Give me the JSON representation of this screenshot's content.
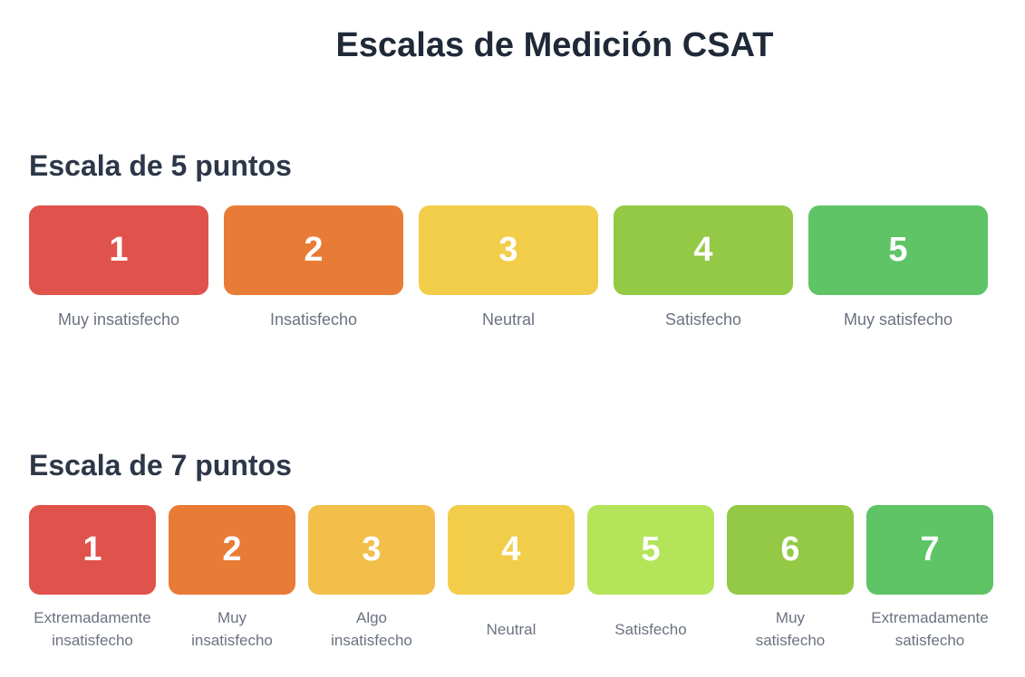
{
  "page": {
    "title": "Escalas de Medición CSAT"
  },
  "scale5": {
    "title": "Escala de 5 puntos",
    "items": [
      {
        "value": "1",
        "label": "Muy insatisfecho",
        "color": "#e0524c"
      },
      {
        "value": "2",
        "label": "Insatisfecho",
        "color": "#e87b35"
      },
      {
        "value": "3",
        "label": "Neutral",
        "color": "#f2cd4a"
      },
      {
        "value": "4",
        "label": "Satisfecho",
        "color": "#93c944"
      },
      {
        "value": "5",
        "label": "Muy satisfecho",
        "color": "#5ec466"
      }
    ]
  },
  "scale7": {
    "title": "Escala de 7 puntos",
    "items": [
      {
        "value": "1",
        "label": "Extremadamente\ninsatisfecho",
        "color": "#e0524c"
      },
      {
        "value": "2",
        "label": "Muy\ninsatisfecho",
        "color": "#e87b35"
      },
      {
        "value": "3",
        "label": "Algo\ninsatisfecho",
        "color": "#f2bf4b"
      },
      {
        "value": "4",
        "label": "Neutral",
        "color": "#f2cd4a"
      },
      {
        "value": "5",
        "label": "Satisfecho",
        "color": "#b3e45a"
      },
      {
        "value": "6",
        "label": "Muy\nsatisfecho",
        "color": "#93c944"
      },
      {
        "value": "7",
        "label": "Extremadamente\nsatisfecho",
        "color": "#5ec466"
      }
    ]
  }
}
